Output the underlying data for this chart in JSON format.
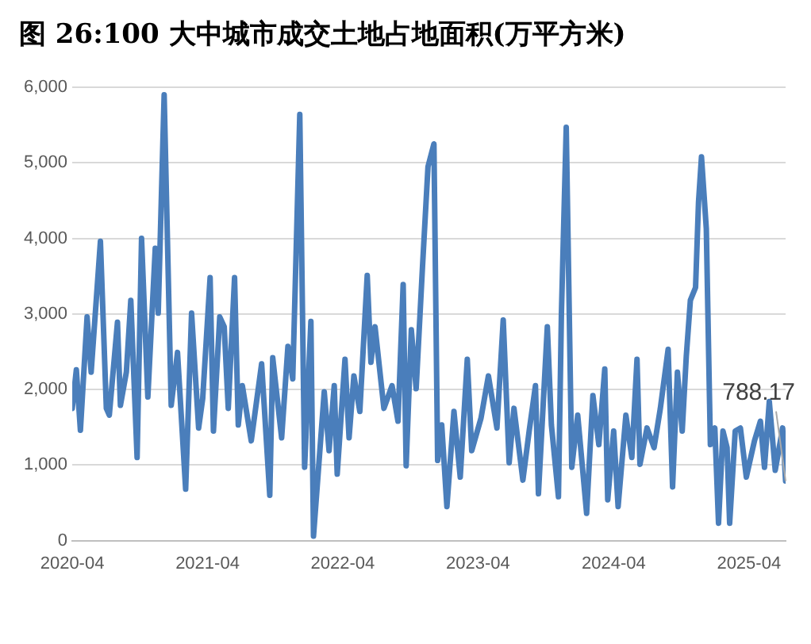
{
  "chart_data": {
    "type": "line",
    "title": "图 26:100 大中城市成交土地占地面积(万平方米)",
    "x": [
      "2020-04-01",
      "2020-04-12",
      "2020-04-23",
      "2020-05-11",
      "2020-05-22",
      "2020-06-16",
      "2020-07-02",
      "2020-07-10",
      "2020-08-01",
      "2020-08-09",
      "2020-08-25",
      "2020-09-06",
      "2020-09-23",
      "2020-10-05",
      "2020-10-22",
      "2020-11-11",
      "2020-11-19",
      "2020-12-05",
      "2020-12-24",
      "2021-01-10",
      "2021-02-01",
      "2021-02-17",
      "2021-03-08",
      "2021-03-19",
      "2021-04-08",
      "2021-04-17",
      "2021-05-04",
      "2021-05-16",
      "2021-05-27",
      "2021-06-13",
      "2021-06-23",
      "2021-07-04",
      "2021-07-28",
      "2021-08-25",
      "2021-09-16",
      "2021-09-24",
      "2021-10-18",
      "2021-11-04",
      "2021-11-17",
      "2021-12-06",
      "2021-12-19",
      "2022-01-05",
      "2022-01-12",
      "2022-02-10",
      "2022-02-23",
      "2022-03-09",
      "2022-03-17",
      "2022-04-07",
      "2022-04-18",
      "2022-05-01",
      "2022-05-17",
      "2022-06-06",
      "2022-06-16",
      "2022-06-27",
      "2022-07-21",
      "2022-08-12",
      "2022-08-28",
      "2022-09-11",
      "2022-09-19",
      "2022-10-03",
      "2022-10-16",
      "2022-11-02",
      "2022-11-17",
      "2022-12-03",
      "2022-12-13",
      "2022-12-24",
      "2023-01-07",
      "2023-01-26",
      "2023-02-12",
      "2023-03-03",
      "2023-03-15",
      "2023-04-09",
      "2023-04-29",
      "2023-05-22",
      "2023-06-08",
      "2023-06-24",
      "2023-07-07",
      "2023-07-31",
      "2023-08-17",
      "2023-09-03",
      "2023-09-11",
      "2023-10-05",
      "2023-10-16",
      "2023-11-04",
      "2023-11-12",
      "2023-11-25",
      "2023-12-10",
      "2023-12-26",
      "2024-01-19",
      "2024-02-05",
      "2024-02-21",
      "2024-03-08",
      "2024-03-16",
      "2024-04-01",
      "2024-04-13",
      "2024-05-04",
      "2024-05-20",
      "2024-06-03",
      "2024-06-11",
      "2024-06-30",
      "2024-07-19",
      "2024-08-05",
      "2024-08-26",
      "2024-09-07",
      "2024-09-20",
      "2024-10-03",
      "2024-10-14",
      "2024-10-25",
      "2024-11-08",
      "2024-11-16",
      "2024-11-24",
      "2024-12-07",
      "2024-12-18",
      "2024-12-30",
      "2025-01-09",
      "2025-01-21",
      "2025-02-01",
      "2025-02-08",
      "2025-02-23",
      "2025-03-09",
      "2025-03-25",
      "2025-04-16",
      "2025-05-02",
      "2025-05-13",
      "2025-05-26",
      "2025-06-11",
      "2025-07-01",
      "2025-07-09"
    ],
    "series": [
      {
        "color": "#4a7ebb",
        "values": [
          1750,
          2260,
          1460,
          2960,
          2230,
          3960,
          1750,
          1660,
          2890,
          1790,
          2230,
          3180,
          1100,
          4000,
          1900,
          3870,
          3010,
          5900,
          1790,
          2490,
          680,
          3010,
          1490,
          1880,
          3480,
          1450,
          2960,
          2830,
          1750,
          3480,
          1530,
          2050,
          1320,
          2340,
          600,
          2420,
          1360,
          2570,
          2140,
          5640,
          970,
          2900,
          60,
          1970,
          1190,
          2050,
          880,
          2400,
          1360,
          2180,
          1710,
          3510,
          2360,
          2830,
          1750,
          2050,
          1580,
          3390,
          990,
          2790,
          2010,
          3610,
          4950,
          5250,
          1060,
          1530,
          450,
          1710,
          840,
          2400,
          1190,
          1620,
          2180,
          1490,
          2920,
          1030,
          1750,
          800,
          1450,
          2050,
          620,
          2830,
          1530,
          580,
          3000,
          5470,
          970,
          1660,
          360,
          1920,
          1270,
          2270,
          540,
          1450,
          450,
          1660,
          1100,
          2400,
          1010,
          1490,
          1230,
          1750,
          2530,
          710,
          2230,
          1450,
          2440,
          3180,
          3350,
          4480,
          5080,
          4130,
          1270,
          1490,
          230,
          1450,
          1230,
          230,
          1450,
          1490,
          840,
          1320,
          1580,
          970,
          1840,
          930,
          1490,
          788.17
        ],
        "value_labels": [
          null,
          null,
          null,
          null,
          null,
          null,
          null,
          null,
          null,
          null,
          null,
          null,
          null,
          null,
          null,
          null,
          null,
          null,
          null,
          null,
          null,
          null,
          null,
          null,
          null,
          null,
          null,
          null,
          null,
          null,
          null,
          null,
          null,
          null,
          null,
          null,
          null,
          null,
          null,
          null,
          null,
          null,
          null,
          null,
          null,
          null,
          null,
          null,
          null,
          null,
          null,
          null,
          null,
          null,
          null,
          null,
          null,
          null,
          null,
          null,
          null,
          null,
          null,
          null,
          null,
          null,
          null,
          null,
          null,
          null,
          null,
          null,
          null,
          null,
          null,
          null,
          null,
          null,
          null,
          null,
          null,
          null,
          null,
          null,
          null,
          null,
          null,
          null,
          null,
          null,
          null,
          null,
          null,
          null,
          null,
          null,
          null,
          null,
          null,
          null,
          null,
          null,
          null,
          null,
          null,
          null,
          null,
          null,
          null,
          null,
          null,
          null,
          null,
          null,
          null,
          null,
          null,
          null,
          null,
          null,
          null,
          null,
          null,
          null,
          null,
          null,
          null,
          "788.17"
        ]
      }
    ],
    "xlim": [
      "2020-04-01",
      "2025-07-09"
    ],
    "xticks": [
      "2020-04",
      "2021-04",
      "2022-04",
      "2023-04",
      "2024-04",
      "2025-04"
    ],
    "ylim": [
      0,
      6000
    ],
    "yticks": [
      0,
      {
        "value": 1000,
        "label": "1,000"
      },
      {
        "value": 2000,
        "label": "2,000"
      },
      {
        "value": 3000,
        "label": "3,000"
      },
      {
        "value": 4000,
        "label": "4,000"
      },
      {
        "value": 5000,
        "label": "5,000"
      },
      {
        "value": 6000,
        "label": "6,000"
      }
    ],
    "grid": "y",
    "legend": false,
    "marker": "none",
    "line_style": "solid"
  }
}
